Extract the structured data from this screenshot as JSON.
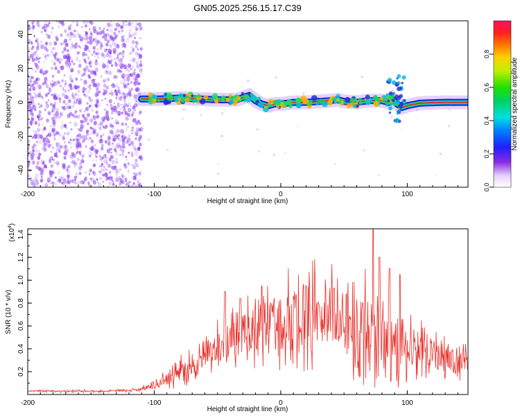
{
  "title": "GN05.2025.256.15.17.C39",
  "colors": {
    "axis": "#000000",
    "snr_line": "#e8302a",
    "track": "#e02020",
    "scatter": "#8a3ff0"
  },
  "chart_data": [
    {
      "type": "heatmap",
      "xlabel": "Height of straight line (km)",
      "ylabel": "Frequency (Hz)",
      "xlim": [
        -200,
        148
      ],
      "ylim": [
        -50,
        48
      ],
      "xticks": [
        -200,
        -100,
        0,
        100
      ],
      "yticks": [
        -40,
        -20,
        0,
        20,
        40
      ],
      "colorbar": {
        "label": "Normalized spectral amplitude",
        "range": [
          0,
          1
        ],
        "ticks": [
          "0.0",
          "0.2",
          "0.4",
          "0.6",
          "0.8"
        ]
      },
      "track": {
        "x": [
          -110,
          -95,
          -80,
          -65,
          -50,
          -35,
          -25,
          -20,
          -15,
          -10,
          -5,
          0,
          10,
          20,
          30,
          40,
          45,
          50,
          60,
          70,
          80,
          85,
          88,
          92,
          96,
          100,
          110,
          130,
          148
        ],
        "freq": [
          2,
          2,
          2.5,
          2,
          1.5,
          1.5,
          4,
          1,
          -1,
          -2,
          -1,
          -1,
          0,
          0,
          0.5,
          1,
          1.5,
          0.5,
          0,
          1,
          1,
          0,
          2,
          -1,
          -3,
          -2,
          -0.5,
          0,
          0
        ]
      }
    },
    {
      "type": "line",
      "xlabel": "Height of straight line (km)",
      "ylabel": "SNR (10 * v/v)",
      "scale_label": "(x10",
      "scale_exp": "4",
      "xlim": [
        -200,
        148
      ],
      "ylim": [
        0,
        14500
      ],
      "xticks": [
        -200,
        -100,
        0,
        100
      ],
      "yticks": [
        "0.2",
        "0.4",
        "0.6",
        "0.8",
        "1.0",
        "1.2",
        "1.4"
      ],
      "envelope": {
        "x": [
          -200,
          -140,
          -115,
          -100,
          -90,
          -80,
          -70,
          -60,
          -50,
          -40,
          -30,
          -20,
          -10,
          0,
          10,
          20,
          30,
          40,
          50,
          60,
          70,
          80,
          90,
          100,
          110,
          120,
          130,
          148
        ],
        "y": [
          300,
          300,
          400,
          700,
          1300,
          2000,
          2600,
          3300,
          3900,
          4500,
          5000,
          5500,
          6000,
          6300,
          6700,
          7000,
          6900,
          6800,
          6600,
          6300,
          6000,
          5600,
          4800,
          4300,
          3900,
          3500,
          3100,
          2800
        ]
      },
      "peaks": [
        {
          "x": -44,
          "y": 9000
        },
        {
          "x": -32,
          "y": 8400
        },
        {
          "x": -15,
          "y": 9500
        },
        {
          "x": 20,
          "y": 9500
        },
        {
          "x": 42,
          "y": 9300
        },
        {
          "x": 67,
          "y": 11000
        },
        {
          "x": 73,
          "y": 14500
        },
        {
          "x": 78,
          "y": 12000
        },
        {
          "x": 86,
          "y": 11000
        },
        {
          "x": 94,
          "y": 10500
        }
      ]
    }
  ]
}
